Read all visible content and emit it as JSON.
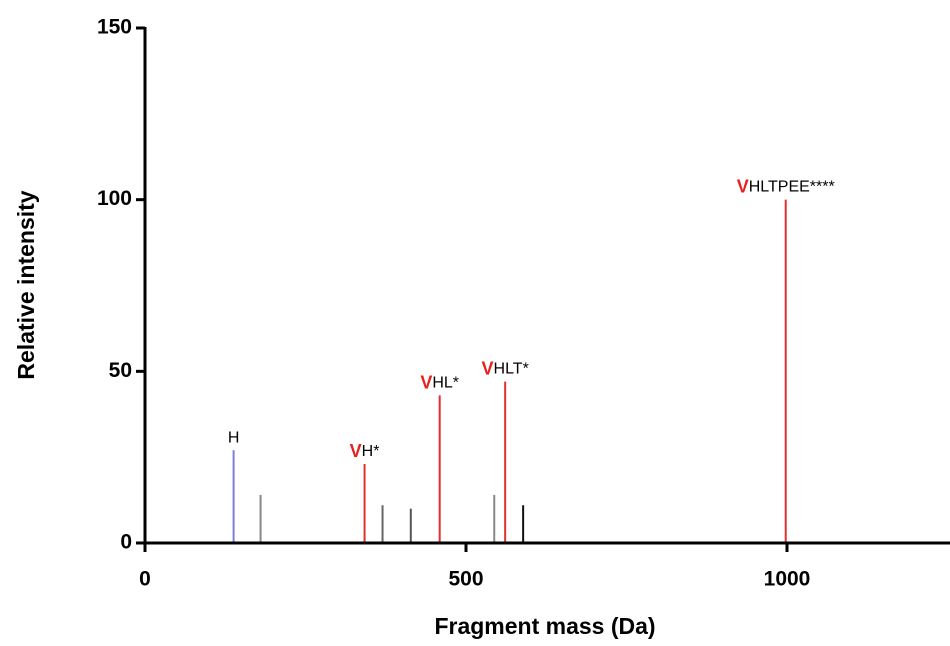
{
  "chart_data": {
    "type": "stem",
    "x_label": "Fragment mass (Da)",
    "y_label": "Relative intensity",
    "x": [
      138,
      180,
      342,
      370,
      414,
      459,
      544,
      561,
      589,
      998
    ],
    "values": [
      27,
      14,
      23,
      11,
      10,
      43,
      14,
      47,
      11,
      100
    ],
    "colors": [
      "#7f7fd8",
      "#888888",
      "#e0302f",
      "#666666",
      "#555555",
      "#e0302f",
      "#888888",
      "#e0302f",
      "#111111",
      "#e0302f"
    ],
    "labels": [
      {
        "text": "H"
      },
      null,
      {
        "highlight": "V",
        "text": "H*"
      },
      null,
      null,
      {
        "highlight": "V",
        "text": "HL*"
      },
      null,
      {
        "highlight": "V",
        "text": "HLT*"
      },
      null,
      {
        "highlight": "V",
        "text": "HLTPEE****"
      }
    ],
    "highlight_color": "#e8201e",
    "xlim": [
      0,
      1262
    ],
    "ylim": [
      0,
      150
    ],
    "xticks": [
      0,
      500,
      1000
    ],
    "yticks": [
      0,
      50,
      100,
      150
    ]
  }
}
